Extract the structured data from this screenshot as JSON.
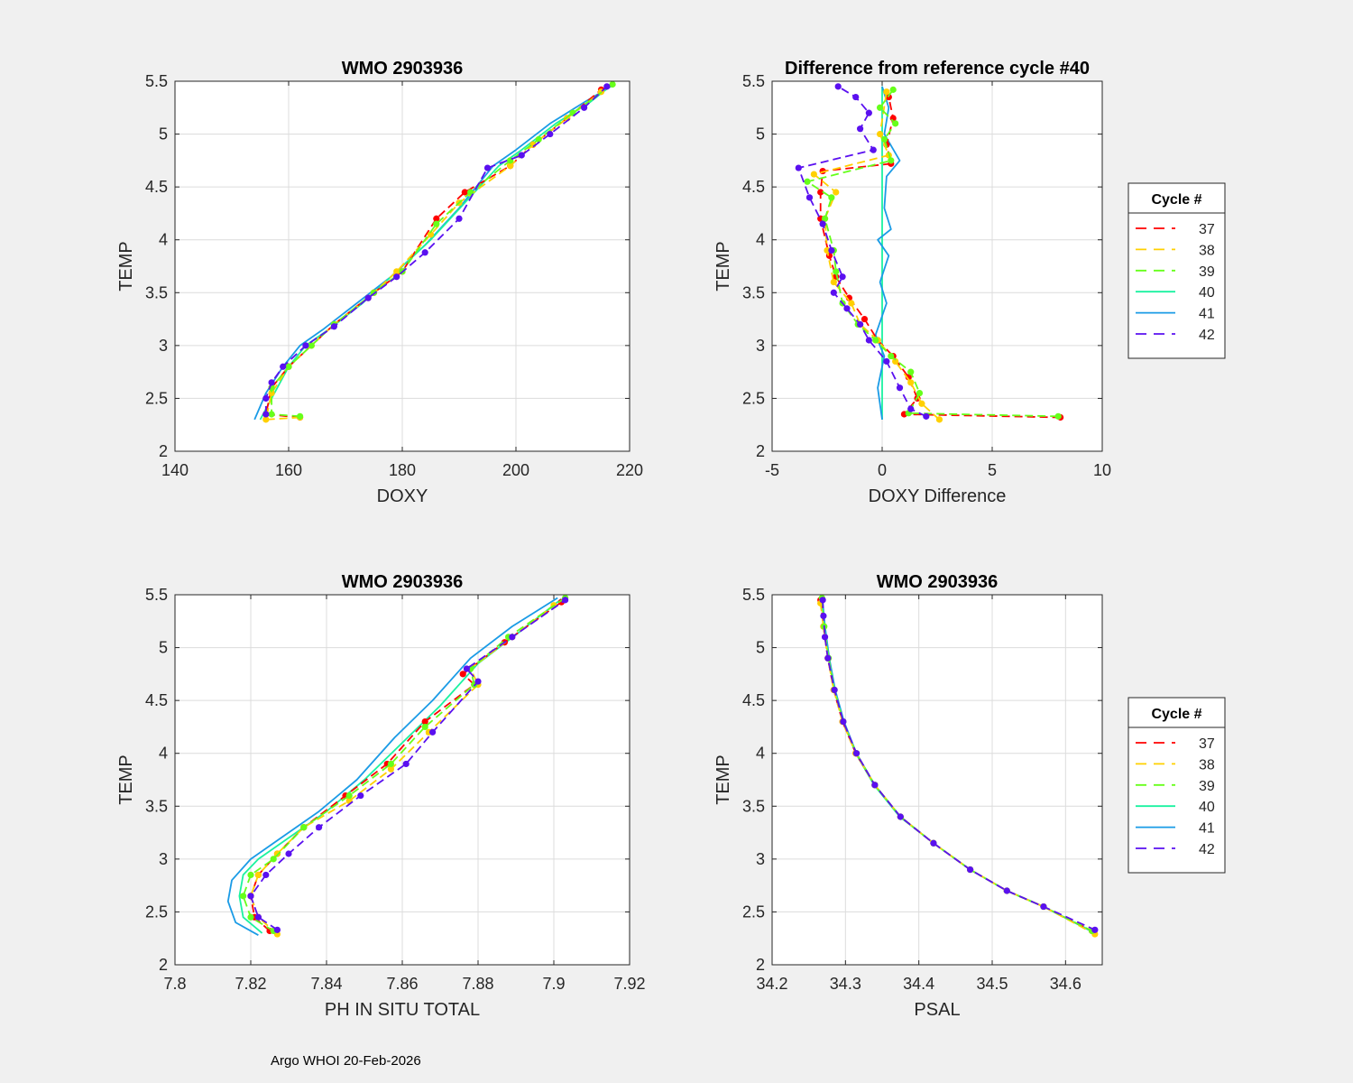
{
  "footer": "Argo WHOI 20-Feb-2026",
  "colors": {
    "c37": "#ff0000",
    "c38": "#ffd000",
    "c39": "#66ff1a",
    "c40": "#1af2a0",
    "c41": "#1a9be6",
    "c42": "#5a10f0"
  },
  "legend": {
    "title": "Cycle #",
    "entries": [
      {
        "label": "37",
        "color": "#ff0000",
        "style": "dashed"
      },
      {
        "label": "38",
        "color": "#ffd000",
        "style": "dashed"
      },
      {
        "label": "39",
        "color": "#66ff1a",
        "style": "dashed"
      },
      {
        "label": "40",
        "color": "#1af2a0",
        "style": "solid"
      },
      {
        "label": "41",
        "color": "#1a9be6",
        "style": "solid"
      },
      {
        "label": "42",
        "color": "#5a10f0",
        "style": "dashed"
      }
    ]
  },
  "chart_data": [
    {
      "id": "doxy",
      "type": "line",
      "title": "WMO 2903936",
      "xlabel": "DOXY",
      "ylabel": "TEMP",
      "xlim": [
        140,
        220
      ],
      "ylim": [
        2,
        5.5
      ],
      "xticks": [
        "140",
        "160",
        "180",
        "200",
        "220"
      ],
      "yticks": [
        "2",
        "2.5",
        "3",
        "3.5",
        "4",
        "4.5",
        "5",
        "5.5"
      ],
      "grid": true,
      "legend": "none",
      "series": [
        {
          "name": "41",
          "x": [
            154,
            156,
            159,
            162,
            166,
            172,
            178,
            184,
            190,
            196,
            200,
            206,
            212,
            217
          ],
          "y": [
            2.3,
            2.55,
            2.8,
            3.0,
            3.15,
            3.4,
            3.65,
            3.95,
            4.3,
            4.7,
            4.85,
            5.1,
            5.3,
            5.46
          ]
        },
        {
          "name": "40",
          "x": [
            155,
            157,
            160,
            163,
            167,
            173,
            179,
            185,
            191,
            197,
            201,
            207,
            213,
            217
          ],
          "y": [
            2.3,
            2.5,
            2.8,
            3.0,
            3.15,
            3.4,
            3.7,
            4.0,
            4.35,
            4.7,
            4.85,
            5.1,
            5.3,
            5.47
          ]
        },
        {
          "name": "37",
          "x": [
            162,
            156,
            157,
            160,
            164,
            168,
            175,
            180,
            186,
            191,
            199,
            203,
            209,
            215
          ],
          "y": [
            2.32,
            2.35,
            2.6,
            2.8,
            3.0,
            3.2,
            3.5,
            3.7,
            4.2,
            4.45,
            4.7,
            4.9,
            5.15,
            5.42
          ]
        },
        {
          "name": "38",
          "x": [
            162,
            156,
            157,
            160,
            164,
            168,
            174,
            179,
            185,
            190,
            199,
            203,
            209,
            215
          ],
          "y": [
            2.32,
            2.3,
            2.55,
            2.8,
            3.0,
            3.2,
            3.45,
            3.7,
            4.05,
            4.35,
            4.7,
            4.9,
            5.15,
            5.4
          ]
        },
        {
          "name": "39",
          "x": [
            162,
            157,
            157,
            160,
            164,
            168,
            175,
            180,
            186,
            192,
            199,
            204,
            210,
            217
          ],
          "y": [
            2.33,
            2.35,
            2.6,
            2.8,
            3.0,
            3.2,
            3.5,
            3.7,
            4.15,
            4.45,
            4.75,
            4.95,
            5.2,
            5.47
          ]
        },
        {
          "name": "42",
          "x": [
            156,
            156,
            157,
            159,
            163,
            168,
            174,
            179,
            184,
            190,
            195,
            201,
            206,
            212,
            216
          ],
          "y": [
            2.35,
            2.5,
            2.65,
            2.8,
            3.0,
            3.18,
            3.45,
            3.65,
            3.88,
            4.2,
            4.68,
            4.8,
            5.0,
            5.25,
            5.45
          ]
        }
      ]
    },
    {
      "id": "diff",
      "type": "line",
      "title": "Difference from reference cycle #40",
      "xlabel": "DOXY Difference",
      "ylabel": "TEMP",
      "xlim": [
        -5,
        10
      ],
      "ylim": [
        2,
        5.5
      ],
      "xticks": [
        "-5",
        "0",
        "5",
        "10"
      ],
      "yticks": [
        "2",
        "2.5",
        "3",
        "3.5",
        "4",
        "4.5",
        "5",
        "5.5"
      ],
      "grid": true,
      "legend": "right",
      "series": [
        {
          "name": "40",
          "x": [
            0,
            0,
            0,
            0,
            0,
            0,
            0,
            0,
            0
          ],
          "y": [
            2.3,
            2.8,
            3.3,
            3.8,
            4.3,
            4.7,
            5.0,
            5.3,
            5.45
          ]
        },
        {
          "name": "41",
          "x": [
            0,
            -0.2,
            0.1,
            -0.3,
            0.2,
            -0.1,
            0.3,
            -0.2,
            0.4,
            0.1,
            0.2,
            0.8,
            0.1,
            0.3,
            0.0
          ],
          "y": [
            2.3,
            2.6,
            2.9,
            3.1,
            3.4,
            3.6,
            3.85,
            4.0,
            4.1,
            4.3,
            4.6,
            4.75,
            5.0,
            5.25,
            5.45
          ]
        },
        {
          "name": "37",
          "x": [
            8.1,
            1.0,
            1.6,
            1.2,
            0.5,
            -0.2,
            -0.8,
            -1.5,
            -2.1,
            -2.4,
            -2.8,
            -2.8,
            -2.7,
            0.4,
            0.2,
            0.5,
            0.3
          ],
          "y": [
            2.32,
            2.35,
            2.5,
            2.7,
            2.9,
            3.05,
            3.25,
            3.45,
            3.65,
            3.85,
            4.2,
            4.45,
            4.65,
            4.72,
            4.9,
            5.15,
            5.35
          ]
        },
        {
          "name": "38",
          "x": [
            2.6,
            1.8,
            1.3,
            0.6,
            -0.2,
            -1.0,
            -1.4,
            -2.2,
            -2.5,
            -2.6,
            -2.1,
            -3.1,
            0.3,
            -0.1,
            0.2
          ],
          "y": [
            2.3,
            2.45,
            2.65,
            2.85,
            3.05,
            3.2,
            3.4,
            3.6,
            3.9,
            4.2,
            4.45,
            4.62,
            4.8,
            5.0,
            5.4
          ]
        },
        {
          "name": "39",
          "x": [
            8.0,
            1.2,
            1.7,
            1.3,
            0.4,
            -0.3,
            -1.1,
            -1.8,
            -2.1,
            -2.2,
            -2.6,
            -2.3,
            -3.4,
            0.4,
            0.1,
            0.6,
            -0.1,
            0.5
          ],
          "y": [
            2.33,
            2.36,
            2.55,
            2.75,
            2.9,
            3.05,
            3.2,
            3.4,
            3.7,
            3.9,
            4.2,
            4.4,
            4.55,
            4.75,
            4.95,
            5.1,
            5.25,
            5.42
          ]
        },
        {
          "name": "42",
          "x": [
            2.0,
            1.3,
            0.8,
            0.2,
            -0.6,
            -1.0,
            -1.6,
            -2.2,
            -1.8,
            -2.3,
            -2.7,
            -3.3,
            -3.8,
            -0.4,
            -1.0,
            -0.6,
            -1.2,
            -2.0
          ],
          "y": [
            2.33,
            2.4,
            2.6,
            2.85,
            3.05,
            3.2,
            3.35,
            3.5,
            3.65,
            3.9,
            4.15,
            4.4,
            4.68,
            4.85,
            5.05,
            5.2,
            5.35,
            5.45
          ]
        }
      ]
    },
    {
      "id": "ph",
      "type": "line",
      "title": "WMO 2903936",
      "xlabel": "PH IN SITU TOTAL",
      "ylabel": "TEMP",
      "xlim": [
        7.8,
        7.92
      ],
      "ylim": [
        2,
        5.5
      ],
      "xticks": [
        "7.8",
        "7.82",
        "7.84",
        "7.86",
        "7.88",
        "7.9",
        "7.92"
      ],
      "yticks": [
        "2",
        "2.5",
        "3",
        "3.5",
        "4",
        "4.5",
        "5",
        "5.5"
      ],
      "grid": true,
      "legend": "none",
      "series": [
        {
          "name": "41",
          "x": [
            7.822,
            7.816,
            7.814,
            7.815,
            7.82,
            7.828,
            7.838,
            7.848,
            7.858,
            7.868,
            7.878,
            7.889,
            7.901
          ],
          "y": [
            2.28,
            2.4,
            2.6,
            2.8,
            3.0,
            3.2,
            3.45,
            3.75,
            4.15,
            4.5,
            4.9,
            5.2,
            5.47
          ]
        },
        {
          "name": "40",
          "x": [
            7.823,
            7.818,
            7.817,
            7.818,
            7.822,
            7.83,
            7.84,
            7.85,
            7.86,
            7.87,
            7.88,
            7.891,
            7.902
          ],
          "y": [
            2.3,
            2.45,
            2.65,
            2.85,
            3.0,
            3.2,
            3.45,
            3.75,
            4.1,
            4.45,
            4.85,
            5.15,
            5.46
          ]
        },
        {
          "name": "37",
          "x": [
            7.825,
            7.821,
            7.82,
            7.822,
            7.827,
            7.834,
            7.845,
            7.856,
            7.866,
            7.879,
            7.876,
            7.887,
            7.902
          ],
          "y": [
            2.32,
            2.45,
            2.65,
            2.85,
            3.05,
            3.3,
            3.6,
            3.9,
            4.3,
            4.65,
            4.75,
            5.05,
            5.43
          ]
        },
        {
          "name": "38",
          "x": [
            7.827,
            7.822,
            7.82,
            7.822,
            7.827,
            7.834,
            7.846,
            7.857,
            7.867,
            7.88,
            7.878,
            7.889,
            7.9
          ],
          "y": [
            2.29,
            2.45,
            2.65,
            2.85,
            3.05,
            3.3,
            3.55,
            3.85,
            4.2,
            4.65,
            4.8,
            5.1,
            5.4
          ]
        },
        {
          "name": "39",
          "x": [
            7.826,
            7.82,
            7.818,
            7.82,
            7.826,
            7.834,
            7.846,
            7.857,
            7.866,
            7.879,
            7.878,
            7.888,
            7.903
          ],
          "y": [
            2.32,
            2.45,
            2.65,
            2.85,
            3.0,
            3.3,
            3.6,
            3.9,
            4.25,
            4.65,
            4.8,
            5.1,
            5.47
          ]
        },
        {
          "name": "42",
          "x": [
            7.827,
            7.822,
            7.82,
            7.824,
            7.83,
            7.838,
            7.849,
            7.861,
            7.868,
            7.88,
            7.877,
            7.889,
            7.903
          ],
          "y": [
            2.33,
            2.45,
            2.65,
            2.85,
            3.05,
            3.3,
            3.6,
            3.9,
            4.2,
            4.68,
            4.8,
            5.1,
            5.45
          ]
        }
      ]
    },
    {
      "id": "psal",
      "type": "line",
      "title": "WMO 2903936",
      "xlabel": "PSAL",
      "ylabel": "TEMP",
      "xlim": [
        34.2,
        34.65
      ],
      "ylim": [
        2,
        5.5
      ],
      "xticks": [
        "34.2",
        "34.3",
        "34.4",
        "34.5",
        "34.6"
      ],
      "yticks": [
        "2",
        "2.5",
        "3",
        "3.5",
        "4",
        "4.5",
        "5",
        "5.5"
      ],
      "grid": true,
      "legend": "right",
      "series": [
        {
          "name": "41",
          "x": [
            34.268,
            34.272,
            34.278,
            34.286,
            34.298,
            34.315,
            34.34,
            34.375,
            34.42,
            34.47,
            34.52,
            34.57,
            34.64
          ],
          "y": [
            5.5,
            5.2,
            4.9,
            4.6,
            4.3,
            4.0,
            3.7,
            3.4,
            3.15,
            2.9,
            2.7,
            2.55,
            2.3
          ]
        },
        {
          "name": "40",
          "x": [
            34.267,
            34.271,
            34.277,
            34.285,
            34.297,
            34.314,
            34.339,
            34.374,
            34.42,
            34.47,
            34.52,
            34.57,
            34.638
          ],
          "y": [
            5.5,
            5.2,
            4.9,
            4.6,
            4.3,
            4.0,
            3.7,
            3.4,
            3.15,
            2.9,
            2.7,
            2.55,
            2.31
          ]
        },
        {
          "name": "37",
          "x": [
            34.266,
            34.27,
            34.276,
            34.284,
            34.296,
            34.314,
            34.34,
            34.375,
            34.42,
            34.47,
            34.52,
            34.57,
            34.636
          ],
          "y": [
            5.45,
            5.2,
            4.9,
            4.6,
            4.3,
            4.0,
            3.7,
            3.4,
            3.15,
            2.9,
            2.7,
            2.55,
            2.32
          ]
        },
        {
          "name": "38",
          "x": [
            34.266,
            34.27,
            34.276,
            34.284,
            34.296,
            34.314,
            34.34,
            34.375,
            34.42,
            34.47,
            34.52,
            34.57,
            34.64
          ],
          "y": [
            5.42,
            5.2,
            4.9,
            4.6,
            4.3,
            4.0,
            3.7,
            3.4,
            3.15,
            2.9,
            2.7,
            2.55,
            2.29
          ]
        },
        {
          "name": "39",
          "x": [
            34.268,
            34.271,
            34.277,
            34.285,
            34.297,
            34.315,
            34.34,
            34.375,
            34.42,
            34.47,
            34.52,
            34.57,
            34.636
          ],
          "y": [
            5.47,
            5.2,
            4.9,
            4.6,
            4.3,
            4.0,
            3.7,
            3.4,
            3.15,
            2.9,
            2.7,
            2.55,
            2.32
          ]
        },
        {
          "name": "42",
          "x": [
            34.269,
            34.27,
            34.272,
            34.276,
            34.285,
            34.297,
            34.315,
            34.34,
            34.375,
            34.42,
            34.47,
            34.52,
            34.57,
            34.64
          ],
          "y": [
            5.45,
            5.3,
            5.1,
            4.9,
            4.6,
            4.3,
            4.0,
            3.7,
            3.4,
            3.15,
            2.9,
            2.7,
            2.55,
            2.33
          ]
        }
      ]
    }
  ]
}
